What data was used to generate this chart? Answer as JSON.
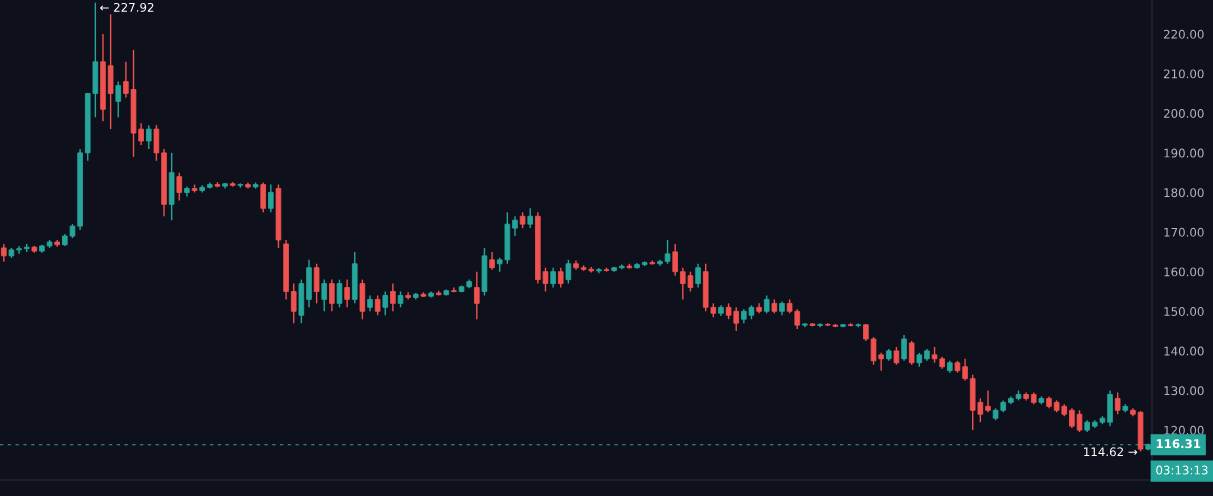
{
  "chart_data": {
    "type": "candlestick",
    "categories": [
      null,
      null,
      null,
      null,
      null,
      null,
      null,
      null,
      null,
      null,
      null,
      null,
      null,
      null,
      null,
      null,
      null,
      null,
      null,
      null,
      null,
      null,
      null,
      null,
      null,
      null,
      null,
      null,
      null,
      null,
      null,
      null,
      null,
      null,
      null,
      null,
      null,
      null,
      null,
      null,
      null,
      null,
      null,
      null,
      null,
      null,
      null,
      null,
      null,
      null,
      null,
      null,
      null,
      null,
      null,
      null,
      null,
      null,
      null,
      null,
      null,
      null,
      null,
      null,
      null,
      null,
      null,
      null,
      null,
      null,
      null,
      null,
      null,
      null,
      null,
      null,
      null,
      null,
      null,
      null,
      null,
      null,
      null,
      null,
      null,
      null,
      null,
      null,
      null,
      null,
      null,
      null,
      null,
      null,
      null,
      null,
      null,
      null,
      null,
      null,
      null,
      null,
      null,
      null,
      null,
      null,
      null,
      null,
      null,
      null,
      null,
      null,
      null,
      null,
      null,
      null,
      null,
      null,
      null,
      null,
      null,
      null,
      null,
      null,
      null,
      null,
      null,
      null,
      null,
      null,
      null,
      null,
      null,
      null,
      null,
      null,
      null,
      null,
      null,
      null,
      null,
      null,
      null,
      null,
      null,
      null,
      null,
      null,
      null,
      null,
      null
    ],
    "ohlc": [
      [
        166,
        167,
        162.5,
        164
      ],
      [
        164,
        166,
        163.5,
        165.5
      ],
      [
        165.5,
        166.5,
        164.5,
        165.8
      ],
      [
        165.8,
        167,
        165,
        166.2
      ],
      [
        166.2,
        166.5,
        164.8,
        165.2
      ],
      [
        165.2,
        166.8,
        164.8,
        166.5
      ],
      [
        166.5,
        168,
        166,
        167.5
      ],
      [
        167.5,
        168,
        166.3,
        166.8
      ],
      [
        166.8,
        169.5,
        166.5,
        169
      ],
      [
        169,
        172,
        168.5,
        171.5
      ],
      [
        171.5,
        191,
        170.5,
        190
      ],
      [
        190,
        205,
        188,
        205
      ],
      [
        205,
        227.92,
        199,
        213
      ],
      [
        213,
        220,
        198,
        201
      ],
      [
        212,
        225,
        196,
        205
      ],
      [
        203,
        208,
        199,
        207
      ],
      [
        208,
        213,
        204,
        205
      ],
      [
        206,
        216,
        189,
        195
      ],
      [
        196,
        197.5,
        192,
        193
      ],
      [
        193,
        197,
        191,
        196
      ],
      [
        196,
        197,
        188,
        190
      ],
      [
        190,
        191,
        174,
        177
      ],
      [
        177,
        190,
        173,
        185
      ],
      [
        184,
        185,
        178,
        180
      ],
      [
        180,
        181.5,
        179,
        181
      ],
      [
        181,
        182,
        180,
        180.5
      ],
      [
        180.5,
        181.8,
        180,
        181.3
      ],
      [
        181.3,
        182.5,
        181,
        182
      ],
      [
        182,
        182.6,
        181.3,
        181.6
      ],
      [
        181.6,
        182.4,
        181,
        182.2
      ],
      [
        182.2,
        182.6,
        181.5,
        181.8
      ],
      [
        181.8,
        182.3,
        181.2,
        182
      ],
      [
        182,
        182.5,
        181,
        181.4
      ],
      [
        181.4,
        182.5,
        181,
        182
      ],
      [
        182,
        182.5,
        175,
        176
      ],
      [
        176,
        182,
        175,
        180
      ],
      [
        181,
        182,
        166,
        168
      ],
      [
        167,
        168,
        153,
        155
      ],
      [
        155,
        157,
        147,
        150
      ],
      [
        149,
        158,
        147,
        157
      ],
      [
        153,
        163,
        151,
        161
      ],
      [
        161,
        162,
        152,
        155
      ],
      [
        153,
        158,
        150,
        157
      ],
      [
        157,
        158,
        150,
        152
      ],
      [
        152,
        158,
        151,
        157
      ],
      [
        156,
        158,
        151,
        153
      ],
      [
        153,
        165,
        152,
        162
      ],
      [
        157,
        158,
        148,
        150
      ],
      [
        151,
        154,
        150,
        153
      ],
      [
        153,
        154,
        149,
        150
      ],
      [
        151,
        155,
        149,
        154
      ],
      [
        155,
        157,
        150,
        152
      ],
      [
        152,
        155,
        151,
        154
      ],
      [
        154,
        154.8,
        153,
        153.5
      ],
      [
        153.5,
        154.6,
        153,
        154.3
      ],
      [
        154.3,
        154.8,
        153.6,
        153.8
      ],
      [
        153.8,
        155,
        153.5,
        154.6
      ],
      [
        154.6,
        155.2,
        154,
        154.2
      ],
      [
        154.2,
        155.5,
        154,
        155.2
      ],
      [
        155.2,
        156,
        154.8,
        155
      ],
      [
        155,
        156.5,
        154.8,
        156.2
      ],
      [
        156.2,
        158,
        155.8,
        157.5
      ],
      [
        156,
        160,
        148,
        152
      ],
      [
        155,
        166,
        154,
        164
      ],
      [
        163,
        165,
        160.5,
        161
      ],
      [
        162,
        163.5,
        160,
        163
      ],
      [
        163,
        175,
        162,
        172
      ],
      [
        171,
        174,
        169,
        173
      ],
      [
        174,
        175,
        171,
        172
      ],
      [
        172,
        176,
        171,
        174
      ],
      [
        174,
        175,
        157,
        158
      ],
      [
        160,
        161,
        155,
        157
      ],
      [
        157,
        161,
        156,
        160
      ],
      [
        160,
        161,
        156,
        157
      ],
      [
        158,
        163,
        157,
        162
      ],
      [
        162,
        162.8,
        160.5,
        161
      ],
      [
        161,
        161.6,
        160.2,
        160.6
      ],
      [
        160.6,
        161.2,
        159.8,
        160.2
      ],
      [
        160.2,
        160.9,
        159.6,
        160.5
      ],
      [
        160.5,
        161,
        160,
        160.3
      ],
      [
        160.3,
        161.2,
        160,
        161
      ],
      [
        161,
        161.8,
        160.6,
        161.4
      ],
      [
        161.4,
        162,
        160.8,
        161
      ],
      [
        161,
        162.2,
        160.8,
        161.8
      ],
      [
        161.8,
        162.6,
        161.4,
        162.3
      ],
      [
        162.3,
        162.8,
        161.8,
        162
      ],
      [
        162,
        163,
        161.5,
        162.6
      ],
      [
        162.6,
        168,
        162,
        164.5
      ],
      [
        165,
        167,
        159,
        160
      ],
      [
        160,
        161,
        153,
        157
      ],
      [
        159,
        160,
        155,
        156
      ],
      [
        157,
        162,
        156,
        161
      ],
      [
        160,
        162,
        150,
        151
      ],
      [
        151,
        152,
        148.5,
        149.5
      ],
      [
        149.5,
        151.5,
        148.8,
        151
      ],
      [
        151,
        152,
        148,
        149
      ],
      [
        150,
        151,
        145,
        147
      ],
      [
        148,
        150.5,
        147,
        150
      ],
      [
        149,
        151.5,
        148,
        151
      ],
      [
        151,
        152,
        149.5,
        150
      ],
      [
        150,
        154,
        149.5,
        153
      ],
      [
        152,
        153,
        149.5,
        150
      ],
      [
        150,
        152.5,
        149,
        152
      ],
      [
        152,
        153,
        149.5,
        150
      ],
      [
        150,
        150.5,
        145.5,
        146.5
      ],
      [
        146.5,
        147,
        146,
        146.8
      ],
      [
        146.8,
        147,
        146.2,
        146.4
      ],
      [
        146.4,
        146.9,
        146,
        146.7
      ],
      [
        146.7,
        147,
        146.3,
        146.5
      ],
      [
        146.5,
        146.8,
        146,
        146.2
      ],
      [
        146.2,
        146.8,
        146,
        146.6
      ],
      [
        146.6,
        147,
        146.2,
        146.4
      ],
      [
        146.4,
        146.9,
        146,
        146.6
      ],
      [
        146.6,
        146.8,
        142.5,
        143
      ],
      [
        143,
        143.5,
        136.5,
        137.5
      ],
      [
        139,
        139.5,
        135,
        138
      ],
      [
        138,
        140.5,
        137.5,
        140
      ],
      [
        140,
        141,
        136.5,
        137
      ],
      [
        138,
        144,
        137.5,
        143
      ],
      [
        142,
        142.5,
        136.5,
        137
      ],
      [
        137,
        139.5,
        136,
        139
      ],
      [
        138,
        140.5,
        137.5,
        140
      ],
      [
        139,
        141,
        137,
        138
      ],
      [
        138,
        138.5,
        135.5,
        136
      ],
      [
        135,
        137.5,
        134.5,
        137
      ],
      [
        137,
        137.5,
        134.5,
        135
      ],
      [
        136,
        138,
        132.5,
        133
      ],
      [
        133,
        134,
        120,
        125
      ],
      [
        127,
        128,
        122,
        124
      ],
      [
        126,
        130,
        124.5,
        125
      ],
      [
        123,
        125.5,
        122.5,
        125
      ],
      [
        125,
        127.5,
        124.5,
        127
      ],
      [
        127,
        128.5,
        126.5,
        128
      ],
      [
        128,
        130,
        127.5,
        129
      ],
      [
        129,
        129.5,
        127.5,
        128
      ],
      [
        129,
        129.5,
        126.5,
        127
      ],
      [
        127,
        128.5,
        126.5,
        128
      ],
      [
        128,
        128.5,
        125.5,
        126
      ],
      [
        127,
        127.5,
        124.5,
        125
      ],
      [
        126,
        126.5,
        123.5,
        124
      ],
      [
        125,
        125.5,
        120.5,
        121
      ],
      [
        124,
        125,
        119.5,
        120
      ],
      [
        120,
        122.5,
        119.5,
        122
      ],
      [
        121,
        122.5,
        120.5,
        122
      ],
      [
        122,
        123.5,
        121.5,
        123
      ],
      [
        122,
        130,
        121,
        129
      ],
      [
        128,
        129.5,
        124,
        125
      ],
      [
        125,
        126.5,
        124.5,
        126
      ],
      [
        125,
        125.5,
        123.5,
        124
      ],
      [
        124.5,
        124.8,
        114.62,
        115.2
      ],
      [
        115.2,
        116.6,
        114.9,
        116.31
      ]
    ],
    "colors": [
      "#ef5350",
      "#26a69a",
      "#26a69a",
      "#26a69a",
      "#ef5350",
      "#26a69a",
      "#26a69a",
      "#ef5350",
      "#26a69a",
      "#26a69a",
      "#26a69a",
      "#26a69a",
      "#26a69a",
      "#ef5350",
      "#ef5350",
      "#26a69a",
      "#ef5350",
      "#ef5350",
      "#ef5350",
      "#26a69a",
      "#ef5350",
      "#ef5350",
      "#26a69a",
      "#ef5350",
      "#26a69a",
      "#ef5350",
      "#26a69a",
      "#26a69a",
      "#ef5350",
      "#26a69a",
      "#ef5350",
      "#26a69a",
      "#ef5350",
      "#26a69a",
      "#ef5350",
      "#26a69a",
      "#ef5350",
      "#ef5350",
      "#ef5350",
      "#26a69a",
      "#26a69a",
      "#ef5350",
      "#26a69a",
      "#ef5350",
      "#26a69a",
      "#ef5350",
      "#26a69a",
      "#ef5350",
      "#26a69a",
      "#ef5350",
      "#26a69a",
      "#ef5350",
      "#26a69a",
      "#ef5350",
      "#26a69a",
      "#ef5350",
      "#26a69a",
      "#ef5350",
      "#26a69a",
      "#ef5350",
      "#26a69a",
      "#26a69a",
      "#ef5350",
      "#26a69a",
      "#ef5350",
      "#26a69a",
      "#26a69a",
      "#26a69a",
      "#ef5350",
      "#26a69a",
      "#ef5350",
      "#ef5350",
      "#26a69a",
      "#ef5350",
      "#26a69a",
      "#ef5350",
      "#ef5350",
      "#ef5350",
      "#26a69a",
      "#ef5350",
      "#26a69a",
      "#26a69a",
      "#ef5350",
      "#26a69a",
      "#26a69a",
      "#ef5350",
      "#26a69a",
      "#26a69a",
      "#ef5350",
      "#ef5350",
      "#ef5350",
      "#26a69a",
      "#ef5350",
      "#ef5350",
      "#26a69a",
      "#ef5350",
      "#ef5350",
      "#26a69a",
      "#26a69a",
      "#ef5350",
      "#26a69a",
      "#ef5350",
      "#26a69a",
      "#ef5350",
      "#ef5350",
      "#26a69a",
      "#ef5350",
      "#26a69a",
      "#ef5350",
      "#ef5350",
      "#26a69a",
      "#ef5350",
      "#26a69a",
      "#ef5350",
      "#ef5350",
      "#ef5350",
      "#26a69a",
      "#ef5350",
      "#26a69a",
      "#ef5350",
      "#26a69a",
      "#26a69a",
      "#ef5350",
      "#ef5350",
      "#26a69a",
      "#ef5350",
      "#ef5350",
      "#ef5350",
      "#ef5350",
      "#ef5350",
      "#26a69a",
      "#26a69a",
      "#26a69a",
      "#26a69a",
      "#ef5350",
      "#ef5350",
      "#26a69a",
      "#ef5350",
      "#ef5350",
      "#ef5350",
      "#ef5350",
      "#ef5350",
      "#26a69a",
      "#26a69a",
      "#26a69a",
      "#26a69a",
      "#ef5350",
      "#26a69a",
      "#ef5350",
      "#ef5350",
      "#26a69a"
    ],
    "ylim": [
      107.4,
      228.6
    ],
    "yticks": [
      {
        "value": 120,
        "label": "120.00"
      },
      {
        "value": 130,
        "label": "130.00"
      },
      {
        "value": 140,
        "label": "140.00"
      },
      {
        "value": 150,
        "label": "150.00"
      },
      {
        "value": 160,
        "label": "160.00"
      },
      {
        "value": 170,
        "label": "170.00"
      },
      {
        "value": 180,
        "label": "180.00"
      },
      {
        "value": 190,
        "label": "190.00"
      },
      {
        "value": 200,
        "label": "200.00"
      },
      {
        "value": 210,
        "label": "210.00"
      },
      {
        "value": 220,
        "label": "220.00"
      }
    ],
    "tick_labels": "y",
    "grid": false,
    "ref_lines": [
      {
        "axis": "y",
        "value": 116.31,
        "label": "116.31",
        "color": "#26a69a",
        "line_style": "dashed"
      }
    ],
    "annotations": [
      "← 227.92",
      "114.62 →",
      "03:13:13"
    ]
  }
}
